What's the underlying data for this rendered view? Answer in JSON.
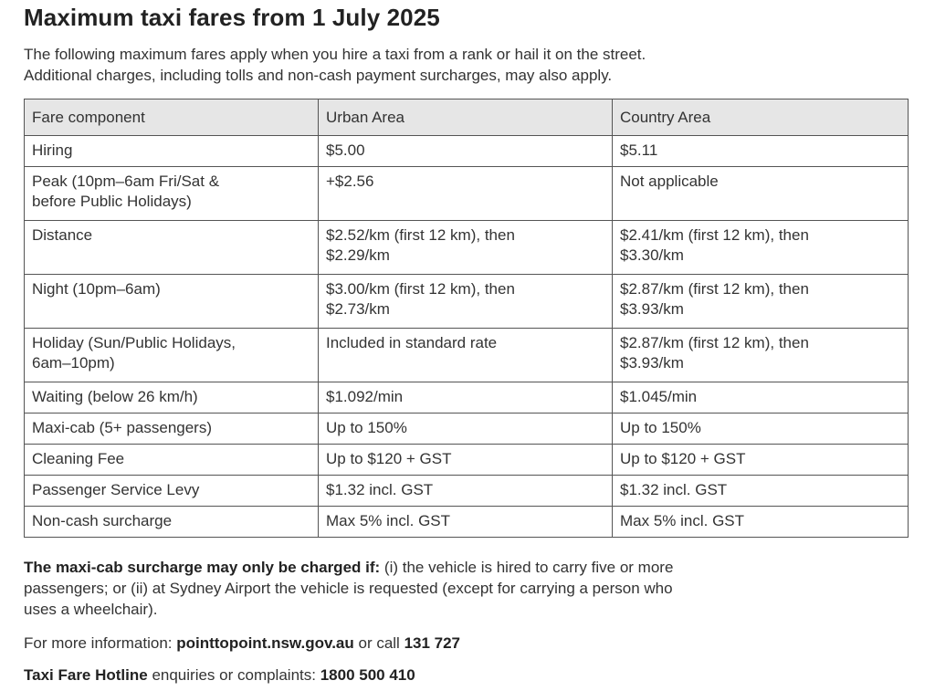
{
  "title": "Maximum taxi fares from 1 July 2025",
  "intro": {
    "line1": "The following maximum fares apply when you hire a taxi from a rank or hail it on the street.",
    "line2": "Additional charges, including tolls and non-cash payment surcharges, may also apply."
  },
  "table": {
    "headers": [
      "Fare component",
      "Urban Area",
      "Country Area"
    ],
    "rows": [
      {
        "component": [
          "Hiring"
        ],
        "urban": [
          "$5.00"
        ],
        "country": [
          "$5.11"
        ]
      },
      {
        "component": [
          "Peak (10pm–6am Fri/Sat &",
          "before Public Holidays)"
        ],
        "urban": [
          "+$2.56"
        ],
        "country": [
          "Not applicable"
        ]
      },
      {
        "component": [
          "Distance"
        ],
        "urban": [
          "$2.52/km (first 12 km), then",
          "$2.29/km"
        ],
        "country": [
          "$2.41/km (first 12 km), then",
          "$3.30/km"
        ]
      },
      {
        "component": [
          "Night (10pm–6am)"
        ],
        "urban": [
          "$3.00/km (first 12 km), then",
          "$2.73/km"
        ],
        "country": [
          "$2.87/km (first 12 km), then",
          "$3.93/km"
        ]
      },
      {
        "component": [
          "Holiday (Sun/Public Holidays,",
          "6am–10pm)"
        ],
        "urban": [
          "Included in standard rate"
        ],
        "country": [
          "$2.87/km (first 12 km), then",
          "$3.93/km"
        ]
      },
      {
        "component": [
          "Waiting (below 26 km/h)"
        ],
        "urban": [
          "$1.092/min"
        ],
        "country": [
          "$1.045/min"
        ]
      },
      {
        "component": [
          "Maxi-cab (5+ passengers)"
        ],
        "urban": [
          "Up to 150%"
        ],
        "country": [
          "Up to 150%"
        ]
      },
      {
        "component": [
          "Cleaning Fee"
        ],
        "urban": [
          "Up to $120 + GST"
        ],
        "country": [
          "Up to $120 + GST"
        ]
      },
      {
        "component": [
          "Passenger Service Levy"
        ],
        "urban": [
          "$1.32 incl. GST"
        ],
        "country": [
          "$1.32 incl. GST"
        ]
      },
      {
        "component": [
          "Non-cash surcharge"
        ],
        "urban": [
          "Max 5% incl. GST"
        ],
        "country": [
          "Max 5% incl. GST"
        ]
      }
    ]
  },
  "notes": {
    "maxi_bold": "The maxi-cab surcharge may only be charged if:",
    "maxi_line1": " (i) the vehicle is hired to carry five or more",
    "maxi_line2": "passengers; or (ii) at Sydney Airport the vehicle is requested (except for carrying a person who",
    "maxi_line3": "uses a wheelchair).",
    "info_prefix": "For more information: ",
    "info_site": "pointtopoint.nsw.gov.au",
    "info_mid": " or call ",
    "info_phone": "131 727",
    "hotline_bold": "Taxi Fare Hotline",
    "hotline_mid": " enquiries or complaints: ",
    "hotline_phone": "1800 500 410"
  }
}
